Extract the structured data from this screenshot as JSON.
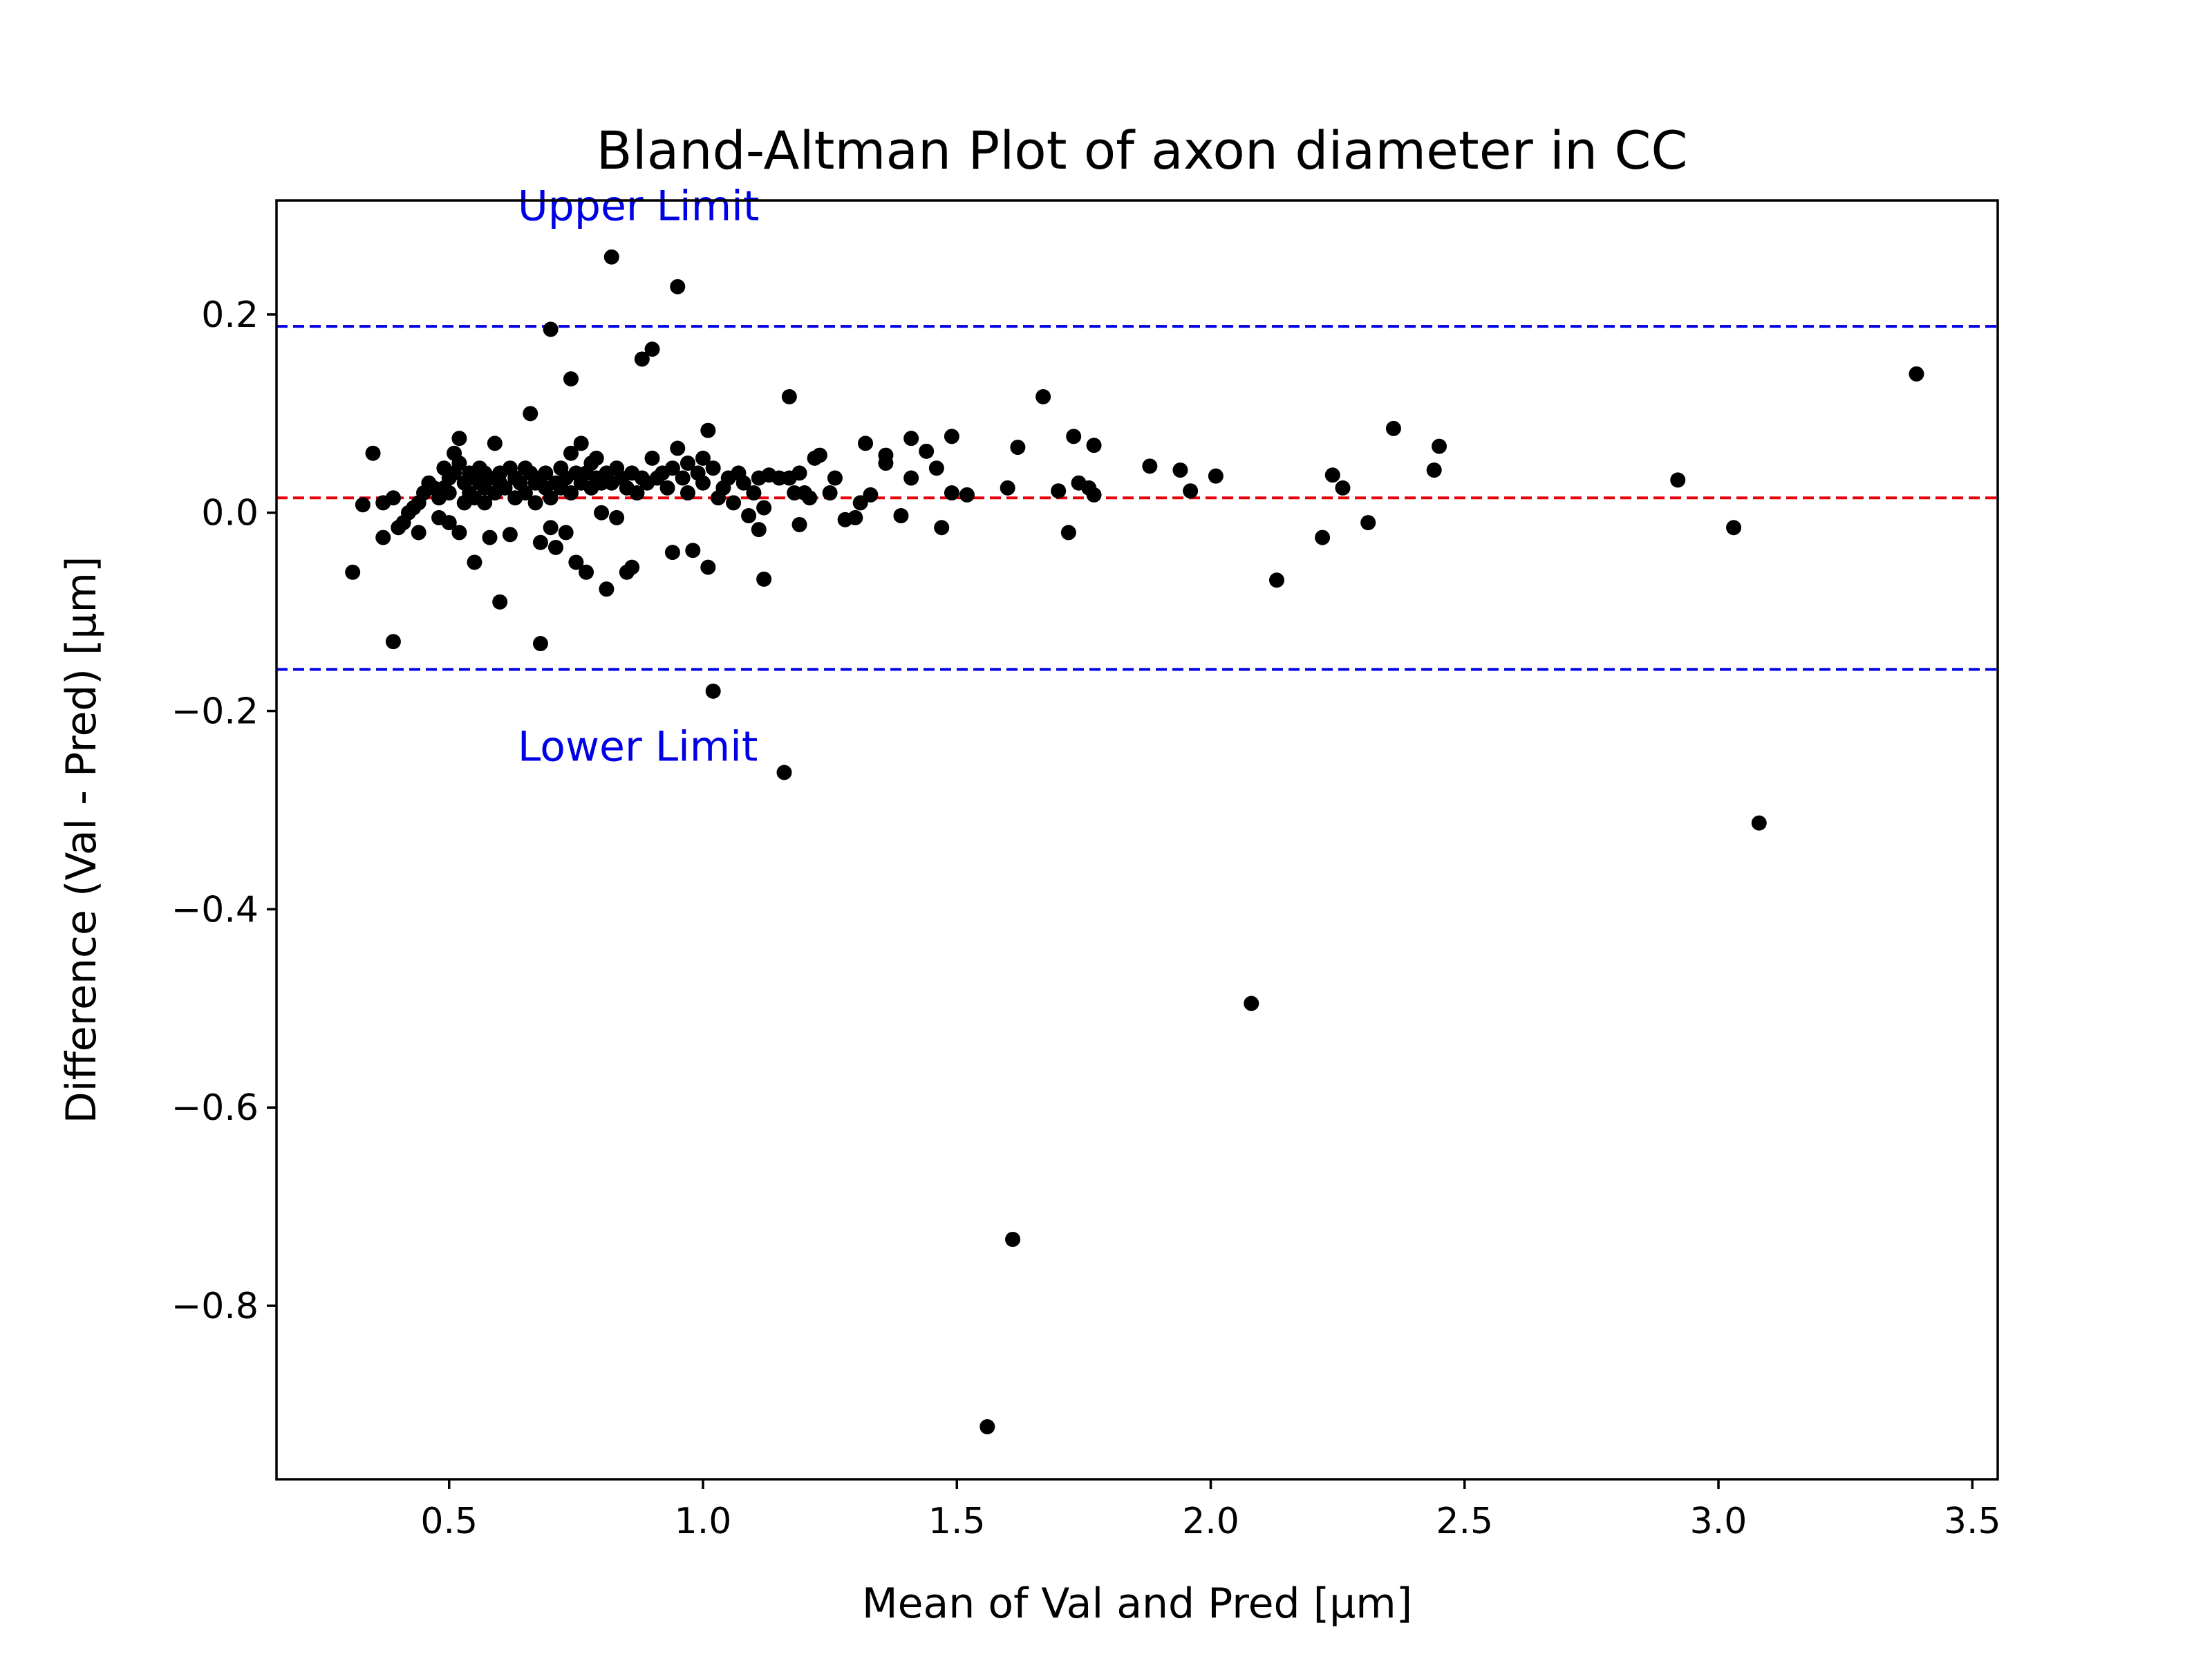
{
  "chart_data": {
    "type": "scatter",
    "title": "Bland-Altman Plot of axon diameter in CC",
    "xlabel": "Mean of Val and Pred [µm]",
    "ylabel": "Difference (Val - Pred) [µm]",
    "xlim": [
      0.16,
      3.55
    ],
    "ylim": [
      -0.975,
      0.315
    ],
    "xticks": [
      0.5,
      1.0,
      1.5,
      2.0,
      2.5,
      3.0,
      3.5
    ],
    "xtick_labels": [
      "0.5",
      "1.0",
      "1.5",
      "2.0",
      "2.5",
      "3.0",
      "3.5"
    ],
    "yticks": [
      0.2,
      0.0,
      -0.2,
      -0.4,
      -0.6,
      -0.8
    ],
    "ytick_labels": [
      "0.2",
      "0.0",
      "−0.2",
      "−0.4",
      "−0.6",
      "−0.8"
    ],
    "grid": false,
    "point_color": "#000000",
    "reference_lines": [
      {
        "type": "mean",
        "y": 0.015,
        "color": "#e8000b",
        "style": "dashed"
      },
      {
        "type": "upper",
        "y": 0.188,
        "color": "#0000e6",
        "style": "dashed"
      },
      {
        "type": "lower",
        "y": -0.158,
        "color": "#0000e6",
        "style": "dashed"
      }
    ],
    "annotations": [
      {
        "text": "Upper Limit",
        "x": 0.635,
        "y": 0.295,
        "color": "#0000e6"
      },
      {
        "text": "Lower Limit",
        "x": 0.635,
        "y": -0.25,
        "color": "#0000e6"
      }
    ],
    "points": [
      [
        0.31,
        -0.06
      ],
      [
        0.33,
        0.008
      ],
      [
        0.35,
        0.06
      ],
      [
        0.37,
        0.01
      ],
      [
        0.37,
        -0.025
      ],
      [
        0.39,
        0.015
      ],
      [
        0.39,
        -0.13
      ],
      [
        0.4,
        -0.015
      ],
      [
        0.41,
        -0.01
      ],
      [
        0.42,
        0.0
      ],
      [
        0.43,
        0.005
      ],
      [
        0.44,
        0.01
      ],
      [
        0.44,
        -0.02
      ],
      [
        0.45,
        0.02
      ],
      [
        0.46,
        0.03
      ],
      [
        0.47,
        0.025
      ],
      [
        0.48,
        0.015
      ],
      [
        0.48,
        -0.005
      ],
      [
        0.49,
        0.025
      ],
      [
        0.49,
        0.045
      ],
      [
        0.5,
        0.035
      ],
      [
        0.5,
        0.02
      ],
      [
        0.5,
        -0.01
      ],
      [
        0.51,
        0.06
      ],
      [
        0.51,
        0.04
      ],
      [
        0.52,
        0.05
      ],
      [
        0.52,
        -0.02
      ],
      [
        0.52,
        0.075
      ],
      [
        0.53,
        0.03
      ],
      [
        0.53,
        0.01
      ],
      [
        0.54,
        0.04
      ],
      [
        0.54,
        0.02
      ],
      [
        0.55,
        0.035
      ],
      [
        0.55,
        -0.05
      ],
      [
        0.55,
        0.015
      ],
      [
        0.56,
        0.045
      ],
      [
        0.56,
        0.03
      ],
      [
        0.57,
        0.025
      ],
      [
        0.57,
        0.01
      ],
      [
        0.57,
        0.04
      ],
      [
        0.58,
        0.035
      ],
      [
        0.58,
        -0.025
      ],
      [
        0.59,
        0.07
      ],
      [
        0.59,
        0.02
      ],
      [
        0.6,
        0.04
      ],
      [
        0.6,
        0.03
      ],
      [
        0.6,
        -0.09
      ],
      [
        0.61,
        0.025
      ],
      [
        0.62,
        -0.022
      ],
      [
        0.62,
        0.045
      ],
      [
        0.63,
        0.035
      ],
      [
        0.63,
        0.015
      ],
      [
        0.64,
        0.03
      ],
      [
        0.65,
        0.045
      ],
      [
        0.65,
        0.02
      ],
      [
        0.66,
        0.04
      ],
      [
        0.66,
        0.1
      ],
      [
        0.67,
        0.03
      ],
      [
        0.67,
        0.01
      ],
      [
        0.68,
        0.035
      ],
      [
        0.68,
        -0.132
      ],
      [
        0.68,
        -0.03
      ],
      [
        0.69,
        0.025
      ],
      [
        0.69,
        0.04
      ],
      [
        0.7,
        0.185
      ],
      [
        0.7,
        0.015
      ],
      [
        0.7,
        -0.015
      ],
      [
        0.71,
        0.03
      ],
      [
        0.71,
        -0.035
      ],
      [
        0.72,
        0.045
      ],
      [
        0.72,
        0.025
      ],
      [
        0.73,
        -0.02
      ],
      [
        0.73,
        0.035
      ],
      [
        0.74,
        0.135
      ],
      [
        0.74,
        0.06
      ],
      [
        0.74,
        0.02
      ],
      [
        0.75,
        0.04
      ],
      [
        0.75,
        -0.05
      ],
      [
        0.76,
        0.03
      ],
      [
        0.76,
        0.07
      ],
      [
        0.77,
        0.04
      ],
      [
        0.77,
        -0.06
      ],
      [
        0.78,
        0.025
      ],
      [
        0.78,
        0.05
      ],
      [
        0.79,
        0.035
      ],
      [
        0.79,
        0.055
      ],
      [
        0.8,
        0.0
      ],
      [
        0.8,
        0.03
      ],
      [
        0.81,
        -0.077
      ],
      [
        0.81,
        0.04
      ],
      [
        0.82,
        0.258
      ],
      [
        0.82,
        0.03
      ],
      [
        0.83,
        0.045
      ],
      [
        0.83,
        -0.005
      ],
      [
        0.84,
        0.035
      ],
      [
        0.85,
        -0.06
      ],
      [
        0.85,
        0.025
      ],
      [
        0.86,
        -0.055
      ],
      [
        0.86,
        0.04
      ],
      [
        0.87,
        0.02
      ],
      [
        0.88,
        0.155
      ],
      [
        0.88,
        0.035
      ],
      [
        0.89,
        0.03
      ],
      [
        0.9,
        0.165
      ],
      [
        0.9,
        0.055
      ],
      [
        0.91,
        0.035
      ],
      [
        0.92,
        0.04
      ],
      [
        0.93,
        0.025
      ],
      [
        0.94,
        0.045
      ],
      [
        0.94,
        -0.04
      ],
      [
        0.95,
        0.228
      ],
      [
        0.95,
        0.065
      ],
      [
        0.96,
        0.035
      ],
      [
        0.97,
        0.05
      ],
      [
        0.97,
        0.02
      ],
      [
        0.98,
        -0.038
      ],
      [
        0.99,
        0.04
      ],
      [
        1.0,
        0.055
      ],
      [
        1.0,
        0.03
      ],
      [
        1.01,
        0.083
      ],
      [
        1.01,
        -0.055
      ],
      [
        1.02,
        0.045
      ],
      [
        1.02,
        -0.18
      ],
      [
        1.03,
        0.015
      ],
      [
        1.04,
        0.025
      ],
      [
        1.05,
        0.035
      ],
      [
        1.06,
        0.01
      ],
      [
        1.07,
        0.04
      ],
      [
        1.08,
        0.03
      ],
      [
        1.09,
        -0.003
      ],
      [
        1.1,
        0.02
      ],
      [
        1.11,
        0.035
      ],
      [
        1.11,
        -0.017
      ],
      [
        1.12,
        0.005
      ],
      [
        1.12,
        -0.067
      ],
      [
        1.13,
        0.038
      ],
      [
        1.15,
        0.035
      ],
      [
        1.16,
        -0.262
      ],
      [
        1.17,
        0.117
      ],
      [
        1.17,
        0.035
      ],
      [
        1.18,
        0.02
      ],
      [
        1.19,
        0.04
      ],
      [
        1.19,
        -0.012
      ],
      [
        1.2,
        0.02
      ],
      [
        1.21,
        0.015
      ],
      [
        1.22,
        0.055
      ],
      [
        1.23,
        0.058
      ],
      [
        1.25,
        0.02
      ],
      [
        1.26,
        0.035
      ],
      [
        1.28,
        -0.007
      ],
      [
        1.3,
        -0.005
      ],
      [
        1.31,
        0.01
      ],
      [
        1.32,
        0.07
      ],
      [
        1.33,
        0.018
      ],
      [
        1.36,
        0.05
      ],
      [
        1.36,
        0.058
      ],
      [
        1.39,
        -0.003
      ],
      [
        1.41,
        0.075
      ],
      [
        1.41,
        0.035
      ],
      [
        1.44,
        0.062
      ],
      [
        1.46,
        0.045
      ],
      [
        1.47,
        -0.015
      ],
      [
        1.49,
        0.077
      ],
      [
        1.49,
        0.02
      ],
      [
        1.52,
        0.018
      ],
      [
        1.56,
        -0.922
      ],
      [
        1.6,
        0.025
      ],
      [
        1.61,
        -0.733
      ],
      [
        1.62,
        0.066
      ],
      [
        1.67,
        0.117
      ],
      [
        1.7,
        0.022
      ],
      [
        1.72,
        -0.02
      ],
      [
        1.73,
        0.077
      ],
      [
        1.74,
        0.03
      ],
      [
        1.76,
        0.025
      ],
      [
        1.77,
        0.068
      ],
      [
        1.77,
        0.018
      ],
      [
        1.88,
        0.047
      ],
      [
        1.94,
        0.043
      ],
      [
        1.96,
        0.022
      ],
      [
        2.01,
        0.037
      ],
      [
        2.08,
        -0.495
      ],
      [
        2.13,
        -0.068
      ],
      [
        2.22,
        -0.025
      ],
      [
        2.24,
        0.038
      ],
      [
        2.26,
        0.025
      ],
      [
        2.31,
        -0.01
      ],
      [
        2.36,
        0.085
      ],
      [
        2.44,
        0.043
      ],
      [
        2.45,
        0.067
      ],
      [
        2.92,
        0.033
      ],
      [
        3.03,
        -0.015
      ],
      [
        3.08,
        -0.313
      ],
      [
        3.39,
        0.14
      ]
    ]
  }
}
